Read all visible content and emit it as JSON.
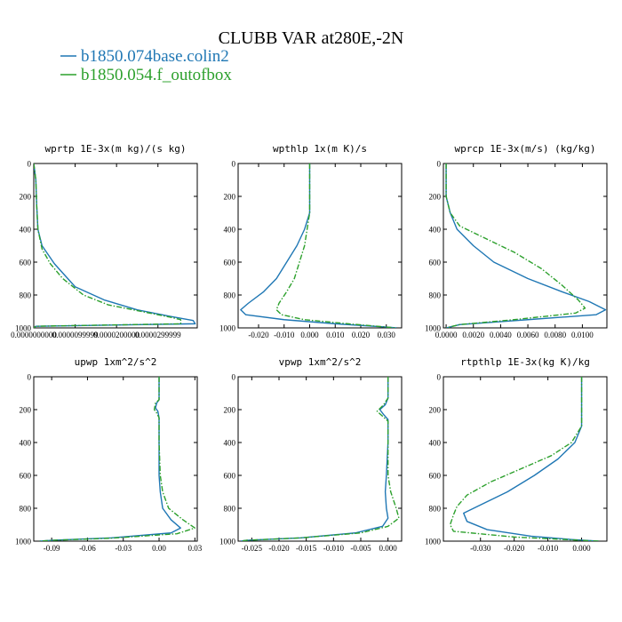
{
  "title": "CLUBB VAR at280E,-2N",
  "legend": [
    {
      "label": "b1850.074base.colin2",
      "color": "#1f77b4",
      "dash": "solid"
    },
    {
      "label": "b1850.054.f_outofbox",
      "color": "#2ca02c",
      "dash": "dashdot"
    }
  ],
  "chart_data": [
    {
      "type": "line",
      "title": "wprtp  1E-3x(m kg)/(s kg)",
      "xlim": [
        0.0,
        3.95e-05
      ],
      "ylim": [
        1000,
        0
      ],
      "xticks": [
        {
          "v": 0.0,
          "label": "0.0000000000"
        },
        {
          "v": 1e-05,
          "label": "0.0000099999"
        },
        {
          "v": 2e-05,
          "label": "0.0000200000"
        },
        {
          "v": 3e-05,
          "label": "0.0000299999"
        }
      ],
      "yticks": [
        0,
        200,
        400,
        600,
        800,
        1000
      ],
      "series": [
        {
          "values": [
            [
              0.0,
              0
            ],
            [
              5e-07,
              100
            ],
            [
              7e-07,
              250
            ],
            [
              1e-06,
              400
            ],
            [
              2e-06,
              500
            ],
            [
              5e-06,
              610
            ],
            [
              1e-05,
              750
            ],
            [
              1.7e-05,
              830
            ],
            [
              2.5e-05,
              890
            ],
            [
              3.3e-05,
              930
            ],
            [
              3.85e-05,
              955
            ],
            [
              3.9e-05,
              975
            ],
            [
              5e-07,
              990
            ],
            [
              0.0,
              1000
            ]
          ]
        },
        {
          "values": [
            [
              0.0,
              0
            ],
            [
              5e-07,
              100
            ],
            [
              7e-07,
              250
            ],
            [
              1e-06,
              400
            ],
            [
              2e-06,
              520
            ],
            [
              4e-06,
              610
            ],
            [
              7e-06,
              700
            ],
            [
              1.2e-05,
              800
            ],
            [
              1.8e-05,
              860
            ],
            [
              2.6e-05,
              900
            ],
            [
              3.3e-05,
              935
            ],
            [
              3.55e-05,
              950
            ],
            [
              3.55e-05,
              975
            ],
            [
              5e-07,
              990
            ],
            [
              0.0,
              1000
            ]
          ]
        }
      ]
    },
    {
      "type": "line",
      "title": "wpthlp  1x(m K)/s",
      "xlim": [
        -0.028,
        0.036
      ],
      "ylim": [
        1000,
        0
      ],
      "xticks": [
        {
          "v": -0.02,
          "label": "-0.020"
        },
        {
          "v": -0.01,
          "label": "-0.010"
        },
        {
          "v": 0.0,
          "label": "0.000"
        },
        {
          "v": 0.01,
          "label": "0.010"
        },
        {
          "v": 0.02,
          "label": "0.020"
        },
        {
          "v": 0.03,
          "label": "0.030"
        }
      ],
      "yticks": [
        0,
        200,
        400,
        600,
        800,
        1000
      ],
      "series": [
        {
          "values": [
            [
              0.0,
              0
            ],
            [
              0.0,
              200
            ],
            [
              0.0,
              300
            ],
            [
              -0.002,
              400
            ],
            [
              -0.005,
              500
            ],
            [
              -0.009,
              600
            ],
            [
              -0.013,
              700
            ],
            [
              -0.018,
              780
            ],
            [
              -0.024,
              850
            ],
            [
              -0.027,
              890
            ],
            [
              -0.025,
              920
            ],
            [
              -0.01,
              950
            ],
            [
              0.01,
              975
            ],
            [
              0.03,
              995
            ],
            [
              0.034,
              1000
            ]
          ]
        },
        {
          "values": [
            [
              0.0,
              0
            ],
            [
              0.0,
              200
            ],
            [
              0.0,
              300
            ],
            [
              -0.001,
              400
            ],
            [
              -0.002,
              500
            ],
            [
              -0.004,
              600
            ],
            [
              -0.006,
              700
            ],
            [
              -0.009,
              780
            ],
            [
              -0.012,
              850
            ],
            [
              -0.013,
              890
            ],
            [
              -0.011,
              920
            ],
            [
              -0.002,
              950
            ],
            [
              0.015,
              975
            ],
            [
              0.03,
              995
            ],
            [
              0.034,
              1000
            ]
          ]
        }
      ]
    },
    {
      "type": "line",
      "title": "wprcp  1E-3x(m/s) (kg/kg)",
      "xlim": [
        -0.0002,
        0.0118
      ],
      "ylim": [
        1000,
        0
      ],
      "xticks": [
        {
          "v": 0.0,
          "label": "0.0000"
        },
        {
          "v": 0.002,
          "label": "0.0020"
        },
        {
          "v": 0.004,
          "label": "0.0040"
        },
        {
          "v": 0.006,
          "label": "0.0060"
        },
        {
          "v": 0.008,
          "label": "0.0080"
        },
        {
          "v": 0.01,
          "label": "0.0100"
        }
      ],
      "yticks": [
        0,
        200,
        400,
        600,
        800,
        1000
      ],
      "series": [
        {
          "values": [
            [
              0.0,
              0
            ],
            [
              0.0,
              200
            ],
            [
              0.0003,
              300
            ],
            [
              0.0008,
              400
            ],
            [
              0.002,
              500
            ],
            [
              0.0035,
              600
            ],
            [
              0.006,
              700
            ],
            [
              0.0085,
              780
            ],
            [
              0.0105,
              840
            ],
            [
              0.0117,
              890
            ],
            [
              0.011,
              920
            ],
            [
              0.006,
              950
            ],
            [
              0.001,
              980
            ],
            [
              0.0,
              1000
            ]
          ]
        },
        {
          "values": [
            [
              0.0,
              0
            ],
            [
              0.0,
              200
            ],
            [
              0.0003,
              300
            ],
            [
              0.001,
              380
            ],
            [
              0.003,
              460
            ],
            [
              0.005,
              540
            ],
            [
              0.007,
              640
            ],
            [
              0.0085,
              740
            ],
            [
              0.0097,
              830
            ],
            [
              0.0102,
              880
            ],
            [
              0.0095,
              910
            ],
            [
              0.005,
              950
            ],
            [
              0.001,
              980
            ],
            [
              0.0,
              1000
            ]
          ]
        }
      ]
    },
    {
      "type": "line",
      "title": "upwp  1xm^2/s^2",
      "xlim": [
        -0.105,
        0.032
      ],
      "ylim": [
        1000,
        0
      ],
      "xticks": [
        {
          "v": -0.09,
          "label": "-0.09"
        },
        {
          "v": -0.06,
          "label": "-0.06"
        },
        {
          "v": -0.03,
          "label": "-0.03"
        },
        {
          "v": 0.0,
          "label": "0.00"
        },
        {
          "v": 0.03,
          "label": "0.03"
        }
      ],
      "yticks": [
        0,
        200,
        400,
        600,
        800,
        1000
      ],
      "series": [
        {
          "values": [
            [
              0.0,
              0
            ],
            [
              0.0,
              140
            ],
            [
              -0.002,
              160
            ],
            [
              -0.003,
              190
            ],
            [
              -0.001,
              210
            ],
            [
              0.0,
              250
            ],
            [
              0.0,
              400
            ],
            [
              0.0,
              600
            ],
            [
              0.001,
              700
            ],
            [
              0.003,
              800
            ],
            [
              0.01,
              870
            ],
            [
              0.018,
              920
            ],
            [
              0.01,
              950
            ],
            [
              -0.04,
              980
            ],
            [
              -0.09,
              995
            ],
            [
              -0.1,
              1000
            ]
          ]
        },
        {
          "values": [
            [
              0.0,
              0
            ],
            [
              0.0,
              140
            ],
            [
              -0.003,
              160
            ],
            [
              -0.004,
              200
            ],
            [
              -0.002,
              220
            ],
            [
              0.0,
              250
            ],
            [
              0.0,
              400
            ],
            [
              0.001,
              600
            ],
            [
              0.003,
              700
            ],
            [
              0.008,
              800
            ],
            [
              0.02,
              870
            ],
            [
              0.03,
              920
            ],
            [
              0.015,
              955
            ],
            [
              -0.04,
              982
            ],
            [
              -0.09,
              995
            ],
            [
              -0.1,
              1000
            ]
          ]
        }
      ]
    },
    {
      "type": "line",
      "title": "vpwp  1xm^2/s^2",
      "xlim": [
        -0.0275,
        0.0025
      ],
      "ylim": [
        1000,
        0
      ],
      "xticks": [
        {
          "v": -0.025,
          "label": "-0.025"
        },
        {
          "v": -0.02,
          "label": "-0.020"
        },
        {
          "v": -0.015,
          "label": "-0.015"
        },
        {
          "v": -0.01,
          "label": "-0.010"
        },
        {
          "v": -0.005,
          "label": "-0.005"
        },
        {
          "v": 0.0,
          "label": "0.000"
        }
      ],
      "yticks": [
        0,
        200,
        400,
        600,
        800,
        1000
      ],
      "series": [
        {
          "values": [
            [
              0.0,
              0
            ],
            [
              0.0,
              130
            ],
            [
              -0.0005,
              170
            ],
            [
              -0.0015,
              200
            ],
            [
              -0.0008,
              230
            ],
            [
              0.0,
              260
            ],
            [
              0.0,
              400
            ],
            [
              -0.0003,
              600
            ],
            [
              -0.0005,
              700
            ],
            [
              -0.0003,
              800
            ],
            [
              0.0,
              860
            ],
            [
              -0.001,
              910
            ],
            [
              -0.006,
              950
            ],
            [
              -0.016,
              980
            ],
            [
              -0.026,
              995
            ],
            [
              -0.027,
              1000
            ]
          ]
        },
        {
          "values": [
            [
              0.0,
              0
            ],
            [
              0.0,
              130
            ],
            [
              -0.0008,
              170
            ],
            [
              -0.002,
              210
            ],
            [
              -0.001,
              240
            ],
            [
              0.0,
              270
            ],
            [
              0.0,
              400
            ],
            [
              0.0,
              600
            ],
            [
              0.0005,
              700
            ],
            [
              0.0015,
              800
            ],
            [
              0.002,
              860
            ],
            [
              0.0,
              910
            ],
            [
              -0.005,
              950
            ],
            [
              -0.016,
              980
            ],
            [
              -0.026,
              995
            ],
            [
              -0.027,
              1000
            ]
          ]
        }
      ]
    },
    {
      "type": "line",
      "title": "rtpthlp  1E-3x(kg K)/kg",
      "xlim": [
        -0.041,
        0.0075
      ],
      "ylim": [
        1000,
        0
      ],
      "xticks": [
        {
          "v": -0.03,
          "label": "-0.030"
        },
        {
          "v": -0.02,
          "label": "-0.020"
        },
        {
          "v": -0.01,
          "label": "-0.010"
        },
        {
          "v": 0.0,
          "label": "0.000"
        }
      ],
      "yticks": [
        0,
        200,
        400,
        600,
        800,
        1000
      ],
      "series": [
        {
          "values": [
            [
              0.0,
              0
            ],
            [
              0.0,
              200
            ],
            [
              0.0,
              300
            ],
            [
              -0.002,
              400
            ],
            [
              -0.007,
              500
            ],
            [
              -0.014,
              600
            ],
            [
              -0.022,
              700
            ],
            [
              -0.03,
              780
            ],
            [
              -0.035,
              830
            ],
            [
              -0.034,
              880
            ],
            [
              -0.028,
              930
            ],
            [
              -0.015,
              970
            ],
            [
              -0.003,
              990
            ],
            [
              0.005,
              1000
            ]
          ]
        },
        {
          "values": [
            [
              0.0,
              0
            ],
            [
              0.0,
              200
            ],
            [
              0.0,
              300
            ],
            [
              -0.003,
              400
            ],
            [
              -0.009,
              480
            ],
            [
              -0.018,
              560
            ],
            [
              -0.027,
              640
            ],
            [
              -0.034,
              720
            ],
            [
              -0.037,
              790
            ],
            [
              -0.038,
              840
            ],
            [
              -0.039,
              900
            ],
            [
              -0.038,
              940
            ],
            [
              -0.02,
              975
            ],
            [
              0.005,
              1000
            ]
          ]
        }
      ]
    }
  ]
}
